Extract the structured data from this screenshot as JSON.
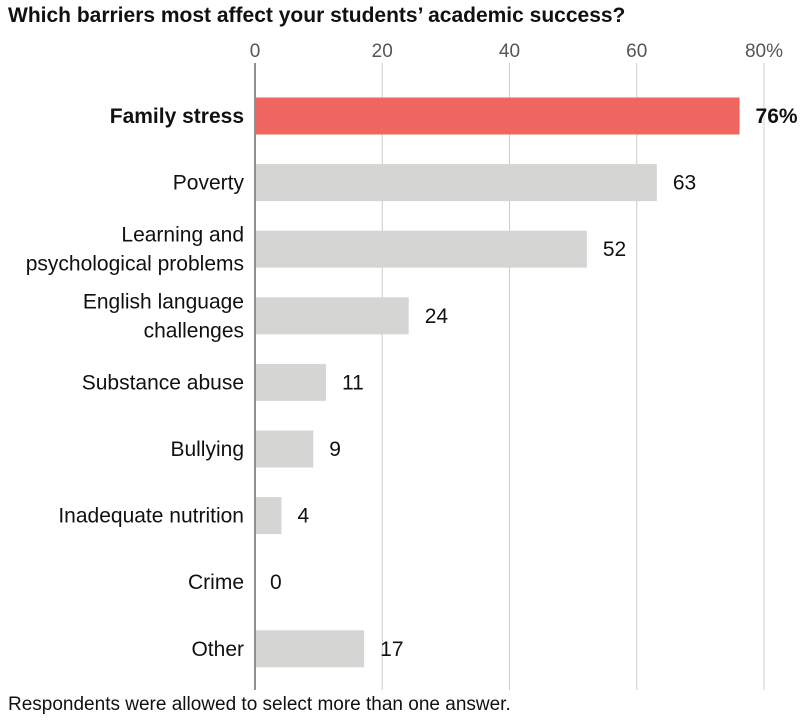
{
  "chart_data": {
    "type": "bar",
    "orientation": "horizontal",
    "title": "Which barriers most affect your students’ academic success?",
    "categories": [
      "Family stress",
      "Poverty",
      "Learning and psychological problems",
      "English language challenges",
      "Substance abuse",
      "Bullying",
      "Inadequate nutrition",
      "Crime",
      "Other"
    ],
    "category_lines": [
      [
        "Family stress"
      ],
      [
        "Poverty"
      ],
      [
        "Learning and",
        "psychological problems"
      ],
      [
        "English language",
        "challenges"
      ],
      [
        "Substance abuse"
      ],
      [
        "Bullying"
      ],
      [
        "Inadequate nutrition"
      ],
      [
        "Crime"
      ],
      [
        "Other"
      ]
    ],
    "values": [
      76,
      63,
      52,
      24,
      11,
      9,
      4,
      0,
      17
    ],
    "value_labels": [
      "76%",
      "63",
      "52",
      "24",
      "11",
      "9",
      "4",
      "0",
      "17"
    ],
    "highlight_index": 0,
    "xlim": [
      0,
      80
    ],
    "x_ticks": [
      0,
      20,
      40,
      60,
      80
    ],
    "x_tick_labels": [
      "0",
      "20",
      "40",
      "60",
      "80%"
    ],
    "axis_position": "top",
    "grid": true,
    "colors": {
      "highlight": "#ef6660",
      "bar": "#d5d5d3",
      "grid": "#cccccc"
    }
  },
  "footnote": "Respondents were allowed to select more than one answer."
}
